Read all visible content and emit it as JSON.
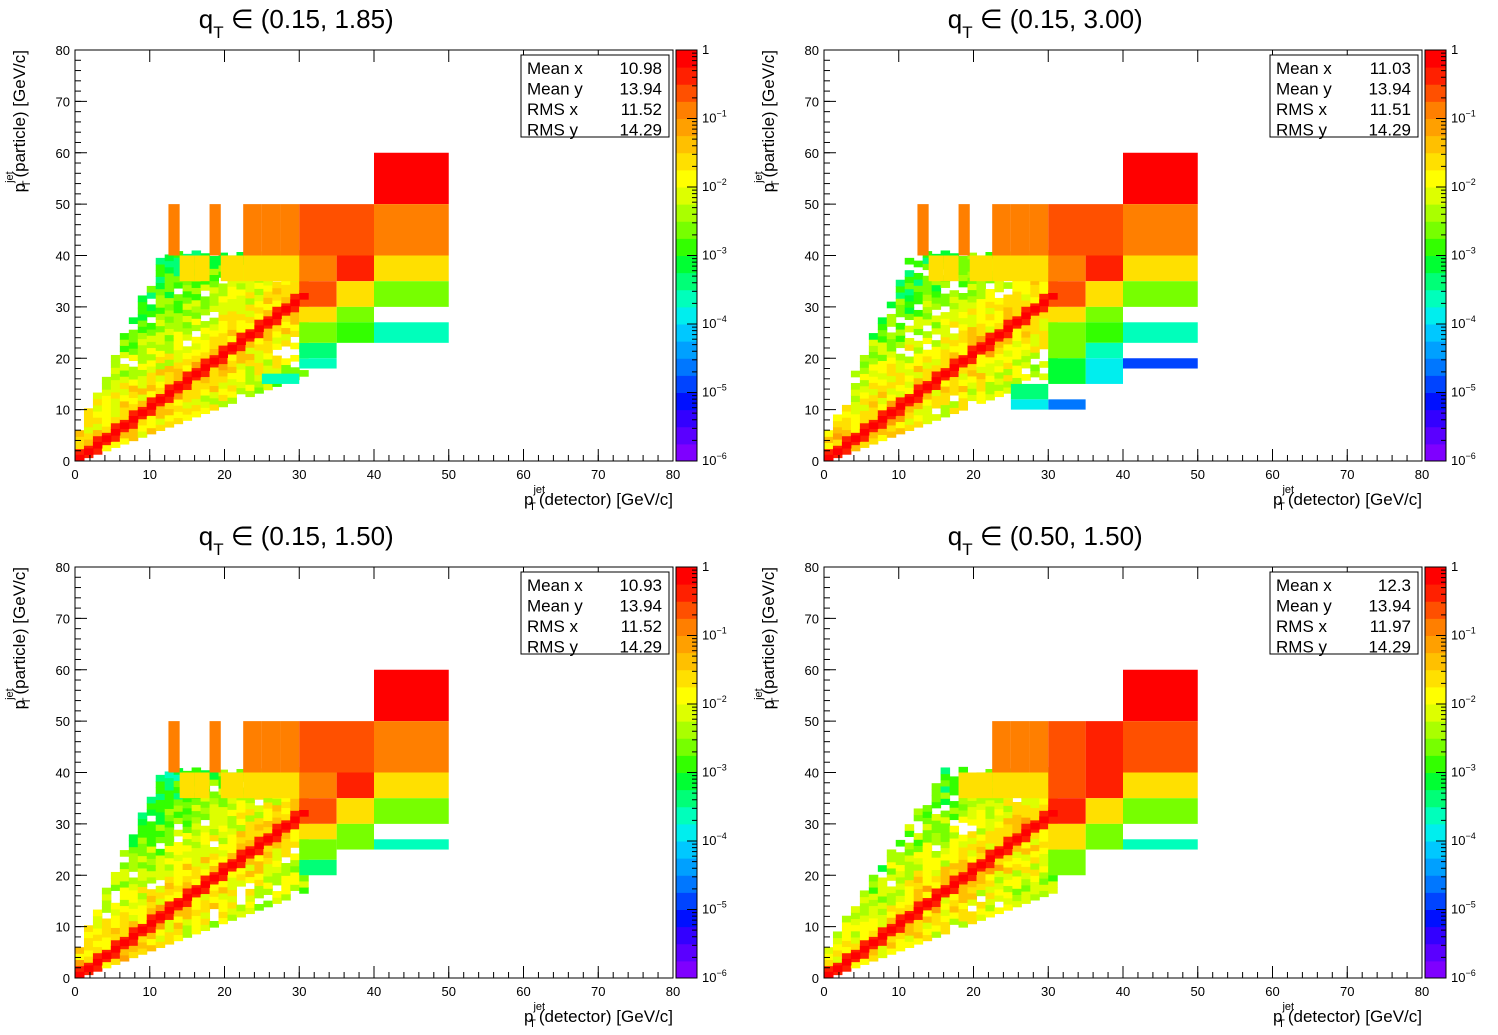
{
  "colors": {
    "frame": "#000000",
    "background": "#ffffff",
    "palette": [
      "#7f00ff",
      "#5a00ff",
      "#3300ff",
      "#0010ff",
      "#0044ff",
      "#0077ff",
      "#00a0ff",
      "#00c8ff",
      "#00eeee",
      "#00ffbb",
      "#00ff77",
      "#00ff33",
      "#33ff00",
      "#77ff00",
      "#aaff00",
      "#ddff00",
      "#ffff00",
      "#ffe000",
      "#ffc000",
      "#ffa000",
      "#ff7f00",
      "#ff5000",
      "#ff2000",
      "#ff0000"
    ]
  },
  "chart_data": [
    {
      "type": "heatmap",
      "title": {
        "main": "q",
        "sub": "T",
        "rest": " ∈ (0.15, 1.85)"
      },
      "xlabel": {
        "pre": "p",
        "sub": "T",
        "sup": "jet",
        "post": "(detector) [GeV/c]"
      },
      "ylabel": {
        "pre": "p",
        "sub": "T",
        "sup": "jet",
        "post": "(particle) [GeV/c]"
      },
      "xlim": [
        0,
        80
      ],
      "ylim": [
        0,
        80
      ],
      "xticks": [
        0,
        10,
        20,
        30,
        40,
        50,
        60,
        70,
        80
      ],
      "yticks": [
        0,
        10,
        20,
        30,
        40,
        50,
        60,
        70,
        80
      ],
      "color_scale": "log",
      "zlim": [
        1e-06,
        1
      ],
      "zticks": [
        {
          "value": 1,
          "label": "1"
        },
        {
          "value": 0.1,
          "label": "10",
          "exp": "−1"
        },
        {
          "value": 0.01,
          "label": "10",
          "exp": "−2"
        },
        {
          "value": 0.001,
          "label": "10",
          "exp": "−3"
        },
        {
          "value": 0.0001,
          "label": "10",
          "exp": "−4"
        },
        {
          "value": 1e-05,
          "label": "10",
          "exp": "−5"
        },
        {
          "value": 1e-06,
          "label": "10",
          "exp": "−6"
        }
      ],
      "stats": [
        {
          "label": "Mean x",
          "value": "10.98"
        },
        {
          "label": "Mean y",
          "value": "13.94"
        },
        {
          "label": "RMS x",
          "value": "11.52"
        },
        {
          "label": "RMS y",
          "value": "14.29"
        }
      ],
      "cells": [
        {
          "x0": 40,
          "x1": 50,
          "y0": 50,
          "y1": 60,
          "z": 0.6
        },
        {
          "x0": 40,
          "x1": 50,
          "y0": 40,
          "y1": 50,
          "z": 0.15
        },
        {
          "x0": 40,
          "x1": 50,
          "y0": 35,
          "y1": 40,
          "z": 0.02
        },
        {
          "x0": 40,
          "x1": 50,
          "y0": 30,
          "y1": 35,
          "z": 0.003
        },
        {
          "x0": 40,
          "x1": 50,
          "y0": 23,
          "y1": 27,
          "z": 0.0002
        },
        {
          "x0": 30,
          "x1": 40,
          "y0": 40,
          "y1": 50,
          "z": 0.25
        },
        {
          "x0": 35,
          "x1": 40,
          "y0": 35,
          "y1": 40,
          "z": 0.4
        },
        {
          "x0": 30,
          "x1": 35,
          "y0": 35,
          "y1": 40,
          "z": 0.15
        },
        {
          "x0": 30,
          "x1": 35,
          "y0": 30,
          "y1": 35,
          "z": 0.25
        },
        {
          "x0": 35,
          "x1": 40,
          "y0": 30,
          "y1": 35,
          "z": 0.03
        },
        {
          "x0": 35,
          "x1": 40,
          "y0": 27,
          "y1": 30,
          "z": 0.003
        },
        {
          "x0": 30,
          "x1": 35,
          "y0": 27,
          "y1": 30,
          "z": 0.03
        },
        {
          "x0": 35,
          "x1": 40,
          "y0": 23,
          "y1": 27,
          "z": 0.001
        },
        {
          "x0": 30,
          "x1": 35,
          "y0": 20,
          "y1": 23,
          "z": 0.0005
        },
        {
          "x0": 30,
          "x1": 35,
          "y0": 23,
          "y1": 27,
          "z": 0.002
        },
        {
          "x0": 30,
          "x1": 35,
          "y0": 18,
          "y1": 20,
          "z": 0.0003
        },
        {
          "x0": 25,
          "x1": 30,
          "y0": 15,
          "y1": 17,
          "z": 0.0002
        }
      ],
      "diagonal": [
        {
          "x0": 0,
          "x1": 30,
          "z_mid": 0.4
        }
      ]
    },
    {
      "type": "heatmap",
      "title": {
        "main": "q",
        "sub": "T",
        "rest": " ∈ (0.15, 3.00)"
      },
      "xlabel": {
        "pre": "p",
        "sub": "T",
        "sup": "jet",
        "post": "(detector) [GeV/c]"
      },
      "ylabel": {
        "pre": "p",
        "sub": "T",
        "sup": "jet",
        "post": "(particle) [GeV/c]"
      },
      "xlim": [
        0,
        80
      ],
      "ylim": [
        0,
        80
      ],
      "xticks": [
        0,
        10,
        20,
        30,
        40,
        50,
        60,
        70,
        80
      ],
      "yticks": [
        0,
        10,
        20,
        30,
        40,
        50,
        60,
        70,
        80
      ],
      "color_scale": "log",
      "zlim": [
        1e-06,
        1
      ],
      "zticks": [
        {
          "value": 1,
          "label": "1"
        },
        {
          "value": 0.1,
          "label": "10",
          "exp": "−1"
        },
        {
          "value": 0.01,
          "label": "10",
          "exp": "−2"
        },
        {
          "value": 0.001,
          "label": "10",
          "exp": "−3"
        },
        {
          "value": 0.0001,
          "label": "10",
          "exp": "−4"
        },
        {
          "value": 1e-05,
          "label": "10",
          "exp": "−5"
        },
        {
          "value": 1e-06,
          "label": "10",
          "exp": "−6"
        }
      ],
      "stats": [
        {
          "label": "Mean x",
          "value": "11.03"
        },
        {
          "label": "Mean y",
          "value": "13.94"
        },
        {
          "label": "RMS x",
          "value": "11.51"
        },
        {
          "label": "RMS y",
          "value": "14.29"
        }
      ],
      "cells": [
        {
          "x0": 40,
          "x1": 50,
          "y0": 50,
          "y1": 60,
          "z": 0.6
        },
        {
          "x0": 40,
          "x1": 50,
          "y0": 40,
          "y1": 50,
          "z": 0.15
        },
        {
          "x0": 40,
          "x1": 50,
          "y0": 35,
          "y1": 40,
          "z": 0.02
        },
        {
          "x0": 40,
          "x1": 50,
          "y0": 30,
          "y1": 35,
          "z": 0.003
        },
        {
          "x0": 40,
          "x1": 50,
          "y0": 23,
          "y1": 27,
          "z": 0.0002
        },
        {
          "x0": 40,
          "x1": 50,
          "y0": 18,
          "y1": 20,
          "z": 1e-05
        },
        {
          "x0": 30,
          "x1": 40,
          "y0": 40,
          "y1": 50,
          "z": 0.25
        },
        {
          "x0": 35,
          "x1": 40,
          "y0": 35,
          "y1": 40,
          "z": 0.4
        },
        {
          "x0": 30,
          "x1": 35,
          "y0": 35,
          "y1": 40,
          "z": 0.15
        },
        {
          "x0": 30,
          "x1": 35,
          "y0": 30,
          "y1": 35,
          "z": 0.25
        },
        {
          "x0": 35,
          "x1": 40,
          "y0": 30,
          "y1": 35,
          "z": 0.03
        },
        {
          "x0": 35,
          "x1": 40,
          "y0": 27,
          "y1": 30,
          "z": 0.003
        },
        {
          "x0": 30,
          "x1": 35,
          "y0": 27,
          "y1": 30,
          "z": 0.03
        },
        {
          "x0": 35,
          "x1": 40,
          "y0": 23,
          "y1": 27,
          "z": 0.001
        },
        {
          "x0": 35,
          "x1": 40,
          "y0": 20,
          "y1": 23,
          "z": 0.0002
        },
        {
          "x0": 35,
          "x1": 40,
          "y0": 15,
          "y1": 20,
          "z": 0.0001
        },
        {
          "x0": 30,
          "x1": 35,
          "y0": 20,
          "y1": 27,
          "z": 0.002
        },
        {
          "x0": 30,
          "x1": 35,
          "y0": 15,
          "y1": 20,
          "z": 0.0006
        },
        {
          "x0": 30,
          "x1": 35,
          "y0": 10,
          "y1": 12,
          "z": 3e-05
        },
        {
          "x0": 25,
          "x1": 30,
          "y0": 12,
          "y1": 15,
          "z": 0.0005
        },
        {
          "x0": 25,
          "x1": 30,
          "y0": 10,
          "y1": 12,
          "z": 0.0001
        }
      ],
      "diagonal": [
        {
          "x0": 0,
          "x1": 30,
          "z_mid": 0.4
        }
      ]
    },
    {
      "type": "heatmap",
      "title": {
        "main": "q",
        "sub": "T",
        "rest": " ∈ (0.15, 1.50)"
      },
      "xlabel": {
        "pre": "p",
        "sub": "T",
        "sup": "jet",
        "post": "(detector) [GeV/c]"
      },
      "ylabel": {
        "pre": "p",
        "sub": "T",
        "sup": "jet",
        "post": "(particle) [GeV/c]"
      },
      "xlim": [
        0,
        80
      ],
      "ylim": [
        0,
        80
      ],
      "xticks": [
        0,
        10,
        20,
        30,
        40,
        50,
        60,
        70,
        80
      ],
      "yticks": [
        0,
        10,
        20,
        30,
        40,
        50,
        60,
        70,
        80
      ],
      "color_scale": "log",
      "zlim": [
        1e-06,
        1
      ],
      "zticks": [
        {
          "value": 1,
          "label": "1"
        },
        {
          "value": 0.1,
          "label": "10",
          "exp": "−1"
        },
        {
          "value": 0.01,
          "label": "10",
          "exp": "−2"
        },
        {
          "value": 0.001,
          "label": "10",
          "exp": "−3"
        },
        {
          "value": 0.0001,
          "label": "10",
          "exp": "−4"
        },
        {
          "value": 1e-05,
          "label": "10",
          "exp": "−5"
        },
        {
          "value": 1e-06,
          "label": "10",
          "exp": "−6"
        }
      ],
      "stats": [
        {
          "label": "Mean x",
          "value": "10.93"
        },
        {
          "label": "Mean y",
          "value": "13.94"
        },
        {
          "label": "RMS x",
          "value": "11.52"
        },
        {
          "label": "RMS y",
          "value": "14.29"
        }
      ],
      "cells": [
        {
          "x0": 40,
          "x1": 50,
          "y0": 50,
          "y1": 60,
          "z": 0.6
        },
        {
          "x0": 40,
          "x1": 50,
          "y0": 40,
          "y1": 50,
          "z": 0.15
        },
        {
          "x0": 40,
          "x1": 50,
          "y0": 35,
          "y1": 40,
          "z": 0.02
        },
        {
          "x0": 40,
          "x1": 50,
          "y0": 30,
          "y1": 35,
          "z": 0.003
        },
        {
          "x0": 40,
          "x1": 50,
          "y0": 25,
          "y1": 27,
          "z": 0.0002
        },
        {
          "x0": 30,
          "x1": 40,
          "y0": 40,
          "y1": 50,
          "z": 0.25
        },
        {
          "x0": 35,
          "x1": 40,
          "y0": 35,
          "y1": 40,
          "z": 0.4
        },
        {
          "x0": 30,
          "x1": 35,
          "y0": 35,
          "y1": 40,
          "z": 0.15
        },
        {
          "x0": 30,
          "x1": 35,
          "y0": 30,
          "y1": 35,
          "z": 0.25
        },
        {
          "x0": 35,
          "x1": 40,
          "y0": 30,
          "y1": 35,
          "z": 0.03
        },
        {
          "x0": 35,
          "x1": 40,
          "y0": 25,
          "y1": 30,
          "z": 0.003
        },
        {
          "x0": 30,
          "x1": 35,
          "y0": 27,
          "y1": 30,
          "z": 0.03
        },
        {
          "x0": 30,
          "x1": 35,
          "y0": 23,
          "y1": 27,
          "z": 0.002
        },
        {
          "x0": 30,
          "x1": 35,
          "y0": 20,
          "y1": 23,
          "z": 0.0005
        }
      ],
      "diagonal": [
        {
          "x0": 0,
          "x1": 30,
          "z_mid": 0.4
        }
      ]
    },
    {
      "type": "heatmap",
      "title": {
        "main": "q",
        "sub": "T",
        "rest": " ∈ (0.50, 1.50)"
      },
      "xlabel": {
        "pre": "p",
        "sub": "T",
        "sup": "jet",
        "post": "(detector) [GeV/c]"
      },
      "ylabel": {
        "pre": "p",
        "sub": "T",
        "sup": "jet",
        "post": "(particle) [GeV/c]"
      },
      "xlim": [
        0,
        80
      ],
      "ylim": [
        0,
        80
      ],
      "xticks": [
        0,
        10,
        20,
        30,
        40,
        50,
        60,
        70,
        80
      ],
      "yticks": [
        0,
        10,
        20,
        30,
        40,
        50,
        60,
        70,
        80
      ],
      "color_scale": "log",
      "zlim": [
        1e-06,
        1
      ],
      "zticks": [
        {
          "value": 1,
          "label": "1"
        },
        {
          "value": 0.1,
          "label": "10",
          "exp": "−1"
        },
        {
          "value": 0.01,
          "label": "10",
          "exp": "−2"
        },
        {
          "value": 0.001,
          "label": "10",
          "exp": "−3"
        },
        {
          "value": 0.0001,
          "label": "10",
          "exp": "−4"
        },
        {
          "value": 1e-05,
          "label": "10",
          "exp": "−5"
        },
        {
          "value": 1e-06,
          "label": "10",
          "exp": "−6"
        }
      ],
      "stats": [
        {
          "label": "Mean x",
          "value": "12.3"
        },
        {
          "label": "Mean y",
          "value": "13.94"
        },
        {
          "label": "RMS x",
          "value": "11.97"
        },
        {
          "label": "RMS y",
          "value": "14.29"
        }
      ],
      "cells": [
        {
          "x0": 40,
          "x1": 50,
          "y0": 50,
          "y1": 60,
          "z": 0.6
        },
        {
          "x0": 40,
          "x1": 50,
          "y0": 40,
          "y1": 50,
          "z": 0.25
        },
        {
          "x0": 40,
          "x1": 50,
          "y0": 35,
          "y1": 40,
          "z": 0.02
        },
        {
          "x0": 40,
          "x1": 50,
          "y0": 30,
          "y1": 35,
          "z": 0.003
        },
        {
          "x0": 40,
          "x1": 50,
          "y0": 25,
          "y1": 27,
          "z": 0.0003
        },
        {
          "x0": 35,
          "x1": 40,
          "y0": 40,
          "y1": 50,
          "z": 0.45
        },
        {
          "x0": 30,
          "x1": 35,
          "y0": 40,
          "y1": 50,
          "z": 0.25
        },
        {
          "x0": 35,
          "x1": 40,
          "y0": 35,
          "y1": 40,
          "z": 0.45
        },
        {
          "x0": 30,
          "x1": 35,
          "y0": 35,
          "y1": 40,
          "z": 0.25
        },
        {
          "x0": 35,
          "x1": 40,
          "y0": 30,
          "y1": 35,
          "z": 0.03
        },
        {
          "x0": 30,
          "x1": 35,
          "y0": 30,
          "y1": 35,
          "z": 0.45
        },
        {
          "x0": 35,
          "x1": 40,
          "y0": 25,
          "y1": 30,
          "z": 0.003
        },
        {
          "x0": 30,
          "x1": 35,
          "y0": 25,
          "y1": 30,
          "z": 0.03
        },
        {
          "x0": 30,
          "x1": 35,
          "y0": 20,
          "y1": 25,
          "z": 0.003
        }
      ],
      "diagonal": [
        {
          "x0": 0,
          "x1": 30,
          "z_mid": 0.4
        }
      ]
    }
  ]
}
